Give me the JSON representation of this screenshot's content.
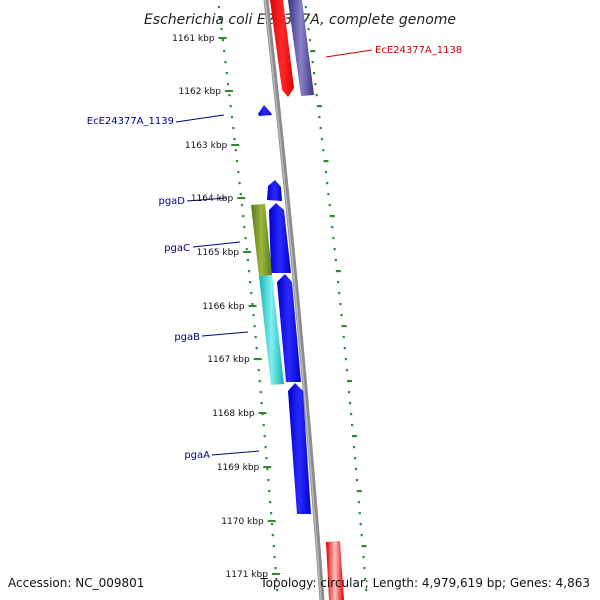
{
  "title": "Escherichia coli E24377A, complete genome",
  "footer": {
    "accession": "Accession: NC_009801",
    "summary": "Topology: circular; Length: 4,979,619 bp; Genes: 4,863"
  },
  "colors": {
    "backbone": "#8c8c8c",
    "tick_marks": "#2e8b2e",
    "forward_strand_gene": "#0000ee",
    "highlighted_gene": "#ee0000",
    "neighbor_gene": "#4a3f8f",
    "pgaC_gene": "#6b8e23",
    "pgaB_gene": "#1fc9c9",
    "label_blue": "#00008b",
    "label_red": "#cc0000"
  },
  "axis": {
    "unit": "kbp",
    "ticks": [
      {
        "label": "1161 kbp"
      },
      {
        "label": "1162 kbp"
      },
      {
        "label": "1163 kbp"
      },
      {
        "label": "1164 kbp"
      },
      {
        "label": "1165 kbp"
      },
      {
        "label": "1166 kbp"
      },
      {
        "label": "1167 kbp"
      },
      {
        "label": "1168 kbp"
      },
      {
        "label": "1169 kbp"
      },
      {
        "label": "1170 kbp"
      },
      {
        "label": "1171 kbp"
      }
    ]
  },
  "genes": [
    {
      "name": "EcE24377A_1138",
      "label": "EcE24377A_1138",
      "color": "#ee0000"
    },
    {
      "name": "neighbor",
      "label": "",
      "color": "#4a3f8f"
    },
    {
      "name": "EcE24377A_1139",
      "label": "EcE24377A_1139",
      "color": "#0000ee"
    },
    {
      "name": "pgaD",
      "label": "pgaD",
      "color": "#0000ee"
    },
    {
      "name": "pgaC",
      "label": "pgaC",
      "color": "#0000ee"
    },
    {
      "name": "pgaB",
      "label": "pgaB",
      "color": "#0000ee"
    },
    {
      "name": "pgaA",
      "label": "pgaA",
      "color": "#0000ee"
    }
  ]
}
